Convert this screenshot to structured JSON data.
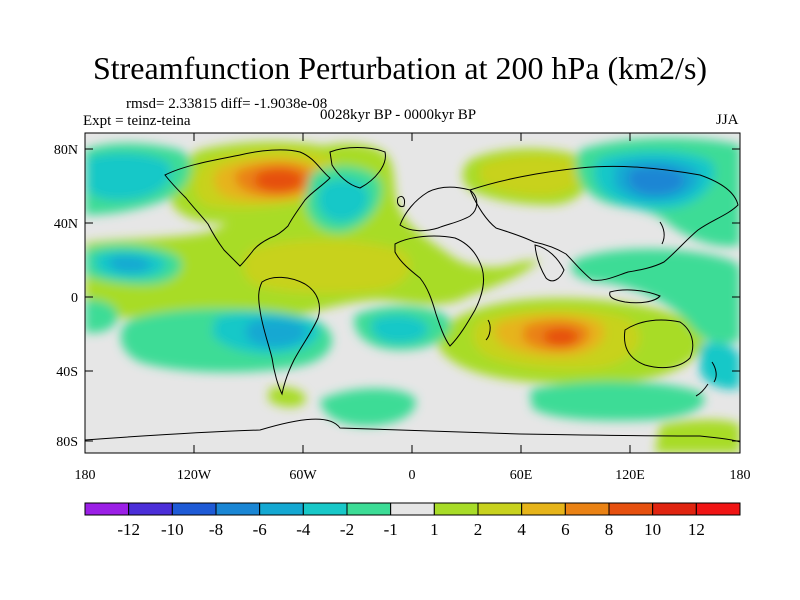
{
  "title": "Streamfunction Perturbation at 200 hPa (km2/s)",
  "stats": "rmsd= 2.33815  diff= -1.9038e-08",
  "experiment": "Expt = teinz-teina",
  "period": "0028kyr BP - 0000kyr BP",
  "season": "JJA",
  "map": {
    "lat_ticks": [
      "80N",
      "40N",
      "0",
      "40S",
      "80S"
    ],
    "lon_ticks": [
      "180",
      "120W",
      "60W",
      "0",
      "60E",
      "120E",
      "180"
    ]
  },
  "colorbar": {
    "labels": [
      "-12",
      "-10",
      "-8",
      "-6",
      "-4",
      "-2",
      "-1",
      "1",
      "2",
      "4",
      "6",
      "8",
      "10",
      "12"
    ],
    "colors": [
      "#9b1fe6",
      "#4b2ed8",
      "#1e5ad6",
      "#1a86d4",
      "#14a8d2",
      "#18c8c8",
      "#3cdc96",
      "#e6e6e6",
      "#a8dc28",
      "#c8d21e",
      "#e6b41a",
      "#ea8214",
      "#e6500f",
      "#e02410",
      "#f01414"
    ]
  },
  "colors": {
    "neutral": "#e6e6e6",
    "coast": "#000000"
  }
}
